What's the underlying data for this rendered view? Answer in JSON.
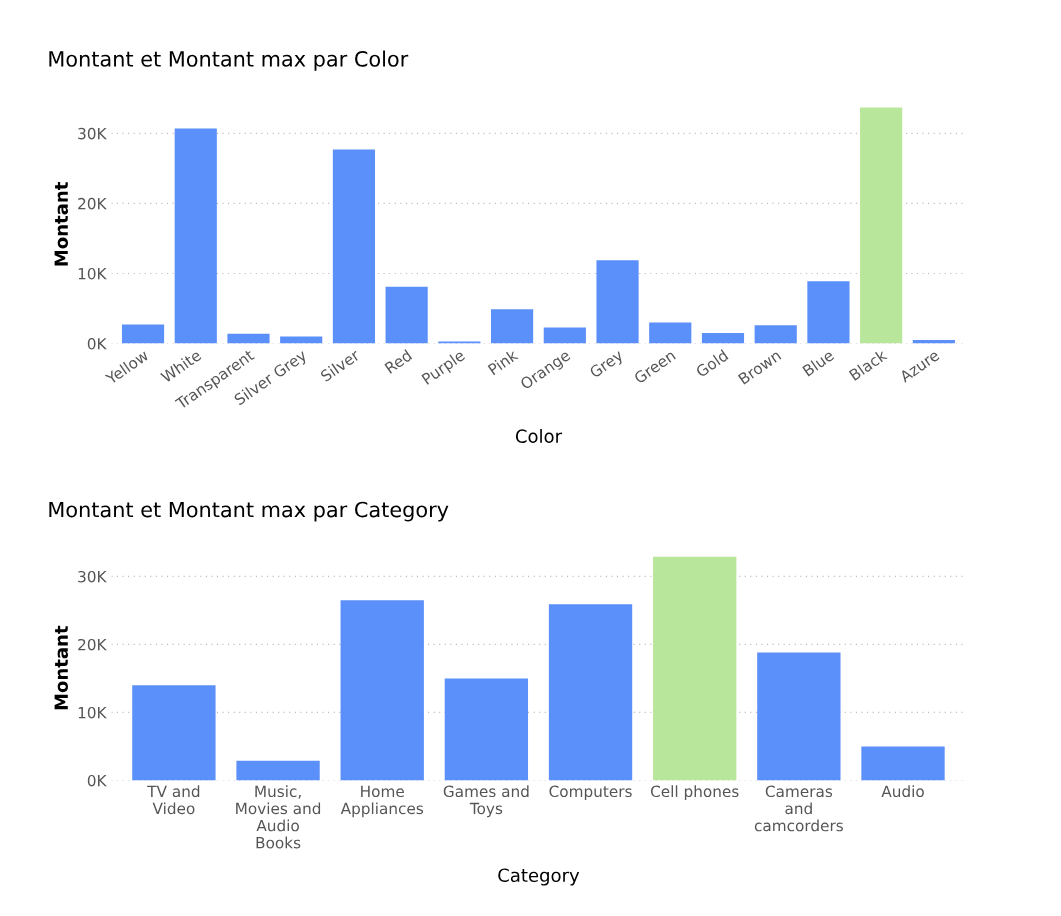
{
  "chart_data": [
    {
      "type": "bar",
      "title": "Montant et Montant max par Color",
      "xlabel": "Color",
      "ylabel": "Montant",
      "categories": [
        "Yellow",
        "White",
        "Transparent",
        "Silver Grey",
        "Silver",
        "Red",
        "Purple",
        "Pink",
        "Orange",
        "Grey",
        "Green",
        "Gold",
        "Brown",
        "Blue",
        "Black",
        "Azure"
      ],
      "values": [
        2700,
        30700,
        1400,
        1000,
        27700,
        8100,
        300,
        4900,
        2300,
        11900,
        3000,
        1500,
        2600,
        8900,
        33700,
        500
      ],
      "colors": [
        "#5b8ff9",
        "#5b8ff9",
        "#5b8ff9",
        "#5b8ff9",
        "#5b8ff9",
        "#5b8ff9",
        "#5b8ff9",
        "#5b8ff9",
        "#5b8ff9",
        "#5b8ff9",
        "#5b8ff9",
        "#5b8ff9",
        "#5b8ff9",
        "#5b8ff9",
        "#b8e69a",
        "#5b8ff9"
      ],
      "ylim": [
        0,
        34000
      ],
      "yticks": [
        {
          "value": 0,
          "label": "0K"
        },
        {
          "value": 10000,
          "label": "10K"
        },
        {
          "value": 20000,
          "label": "20K"
        },
        {
          "value": 30000,
          "label": "30K"
        }
      ],
      "grid": "y"
    },
    {
      "type": "bar",
      "title": "Montant et Montant max par Category",
      "xlabel": "Category",
      "ylabel": "Montant",
      "categories": [
        "TV and\nVideo",
        "Music,\nMovies and\nAudio\nBooks",
        "Home\nAppliances",
        "Games and\nToys",
        "Computers",
        "Cell phones",
        "Cameras\nand\ncamcorders",
        "Audio"
      ],
      "values": [
        14000,
        2900,
        26500,
        15000,
        25900,
        32900,
        18800,
        5000
      ],
      "colors": [
        "#5b8ff9",
        "#5b8ff9",
        "#5b8ff9",
        "#5b8ff9",
        "#5b8ff9",
        "#b8e69a",
        "#5b8ff9",
        "#5b8ff9"
      ],
      "ylim": [
        0,
        33000
      ],
      "yticks": [
        {
          "value": 0,
          "label": "0K"
        },
        {
          "value": 10000,
          "label": "10K"
        },
        {
          "value": 20000,
          "label": "20K"
        },
        {
          "value": 30000,
          "label": "30K"
        }
      ],
      "grid": "y"
    }
  ]
}
